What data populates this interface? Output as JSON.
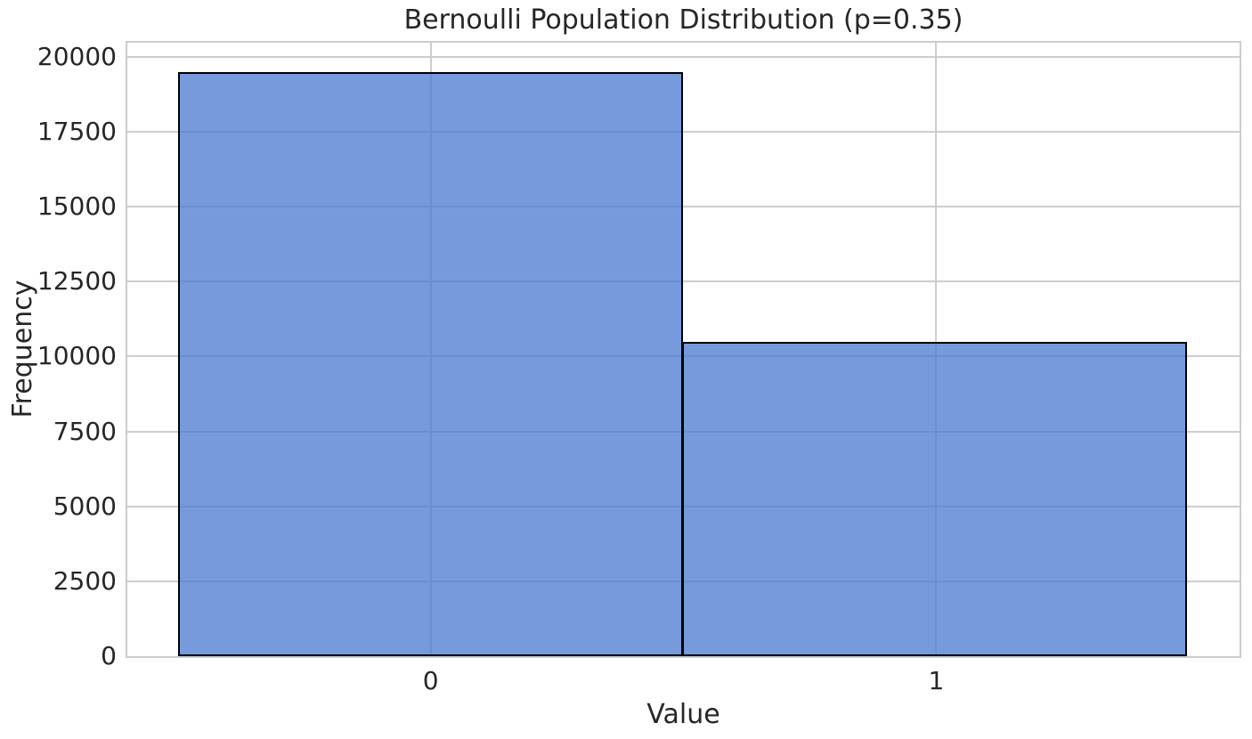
{
  "chart_data": {
    "type": "bar",
    "subtype": "histogram",
    "title": "Bernoulli Population Distribution (p=0.35)",
    "xlabel": "Value",
    "ylabel": "Frequency",
    "categories": [
      "0",
      "1"
    ],
    "values": [
      19500,
      10500
    ],
    "bin_edges": [
      0,
      0.5,
      1
    ],
    "xtick_positions": [
      0.25,
      0.75
    ],
    "xlim": [
      -0.05,
      1.05
    ],
    "ylim": [
      0,
      20475
    ],
    "yticks": [
      0,
      2500,
      5000,
      7500,
      10000,
      12500,
      15000,
      17500,
      20000
    ],
    "grid": true,
    "legend": false,
    "style": "seaborn-whitegrid",
    "colors": {
      "bar_fill": "rgba(72,120,208,0.75)",
      "bar_fill_over_white": "#769ADC",
      "bar_edge": "#000000",
      "gridline": "#cdcdcd",
      "spine": "#cccccc",
      "text": "#262626",
      "background": "#ffffff"
    }
  }
}
